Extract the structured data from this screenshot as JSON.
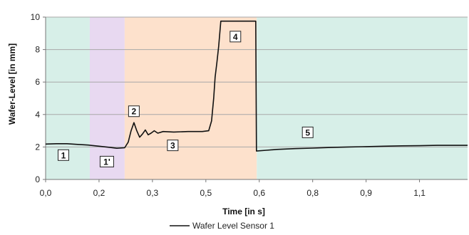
{
  "chart_data": {
    "type": "line",
    "xlabel": "Time [in s]",
    "ylabel": "Wafer-Level  [in mm]",
    "xlim": [
      0.0,
      1.185
    ],
    "ylim": [
      0,
      10
    ],
    "x_ticks": [
      {
        "value": 0.0,
        "label": "0,0"
      },
      {
        "value": 0.15,
        "label": "0,2"
      },
      {
        "value": 0.3,
        "label": "0,3"
      },
      {
        "value": 0.45,
        "label": "0,5"
      },
      {
        "value": 0.6,
        "label": "0,6"
      },
      {
        "value": 0.75,
        "label": "0,8"
      },
      {
        "value": 0.9,
        "label": "0,9"
      },
      {
        "value": 1.05,
        "label": "1,1"
      }
    ],
    "y_ticks": [
      {
        "value": 0,
        "label": "0"
      },
      {
        "value": 2,
        "label": "2"
      },
      {
        "value": 4,
        "label": "4"
      },
      {
        "value": 6,
        "label": "6"
      },
      {
        "value": 8,
        "label": "8"
      },
      {
        "value": 10,
        "label": "10"
      }
    ],
    "grid": "horizontal",
    "legend": {
      "position": "bottom-center",
      "entries": [
        "Wafer Level Sensor 1"
      ]
    },
    "colors": {
      "line": "#111111",
      "zone_green": "#d7efe8",
      "zone_purple": "#e8d9f1",
      "zone_orange": "#fde1cc",
      "grid": "#a8a8a8"
    },
    "regions": [
      {
        "label": "1",
        "x_start": 0.0,
        "x_end": 0.124,
        "color": "#d7efe8"
      },
      {
        "label": "1'",
        "x_start": 0.124,
        "x_end": 0.222,
        "color": "#e8d9f1"
      },
      {
        "label": "2-3-4",
        "x_start": 0.222,
        "x_end": 0.593,
        "color": "#fde1cc"
      },
      {
        "label": "5",
        "x_start": 0.593,
        "x_end": 1.185,
        "color": "#d7efe8"
      }
    ],
    "annotations": [
      {
        "label": "1",
        "x": 0.05,
        "y": 1.5
      },
      {
        "label": "1'",
        "x": 0.172,
        "y": 1.1
      },
      {
        "label": "2",
        "x": 0.248,
        "y": 4.2
      },
      {
        "label": "3",
        "x": 0.357,
        "y": 2.1
      },
      {
        "label": "4",
        "x": 0.533,
        "y": 8.8
      },
      {
        "label": "5",
        "x": 0.736,
        "y": 2.9
      }
    ],
    "series": [
      {
        "name": "Wafer Level Sensor 1",
        "points": [
          [
            0.0,
            2.18
          ],
          [
            0.03,
            2.2
          ],
          [
            0.06,
            2.2
          ],
          [
            0.09,
            2.16
          ],
          [
            0.12,
            2.12
          ],
          [
            0.15,
            2.05
          ],
          [
            0.18,
            1.98
          ],
          [
            0.2,
            1.92
          ],
          [
            0.222,
            1.95
          ],
          [
            0.232,
            2.3
          ],
          [
            0.24,
            3.0
          ],
          [
            0.248,
            3.5
          ],
          [
            0.256,
            3.0
          ],
          [
            0.264,
            2.6
          ],
          [
            0.272,
            2.8
          ],
          [
            0.28,
            3.05
          ],
          [
            0.288,
            2.75
          ],
          [
            0.296,
            2.85
          ],
          [
            0.305,
            3.0
          ],
          [
            0.315,
            2.85
          ],
          [
            0.33,
            2.95
          ],
          [
            0.36,
            2.92
          ],
          [
            0.4,
            2.95
          ],
          [
            0.44,
            2.95
          ],
          [
            0.458,
            3.0
          ],
          [
            0.466,
            3.6
          ],
          [
            0.472,
            5.0
          ],
          [
            0.476,
            6.3
          ],
          [
            0.481,
            7.2
          ],
          [
            0.486,
            8.2
          ],
          [
            0.492,
            9.75
          ],
          [
            0.59,
            9.75
          ],
          [
            0.592,
            1.75
          ],
          [
            0.62,
            1.8
          ],
          [
            0.65,
            1.85
          ],
          [
            0.7,
            1.9
          ],
          [
            0.75,
            1.93
          ],
          [
            0.8,
            1.97
          ],
          [
            0.85,
            2.0
          ],
          [
            0.9,
            2.02
          ],
          [
            0.95,
            2.05
          ],
          [
            1.0,
            2.07
          ],
          [
            1.05,
            2.08
          ],
          [
            1.1,
            2.1
          ],
          [
            1.15,
            2.1
          ],
          [
            1.185,
            2.1
          ]
        ]
      }
    ]
  }
}
